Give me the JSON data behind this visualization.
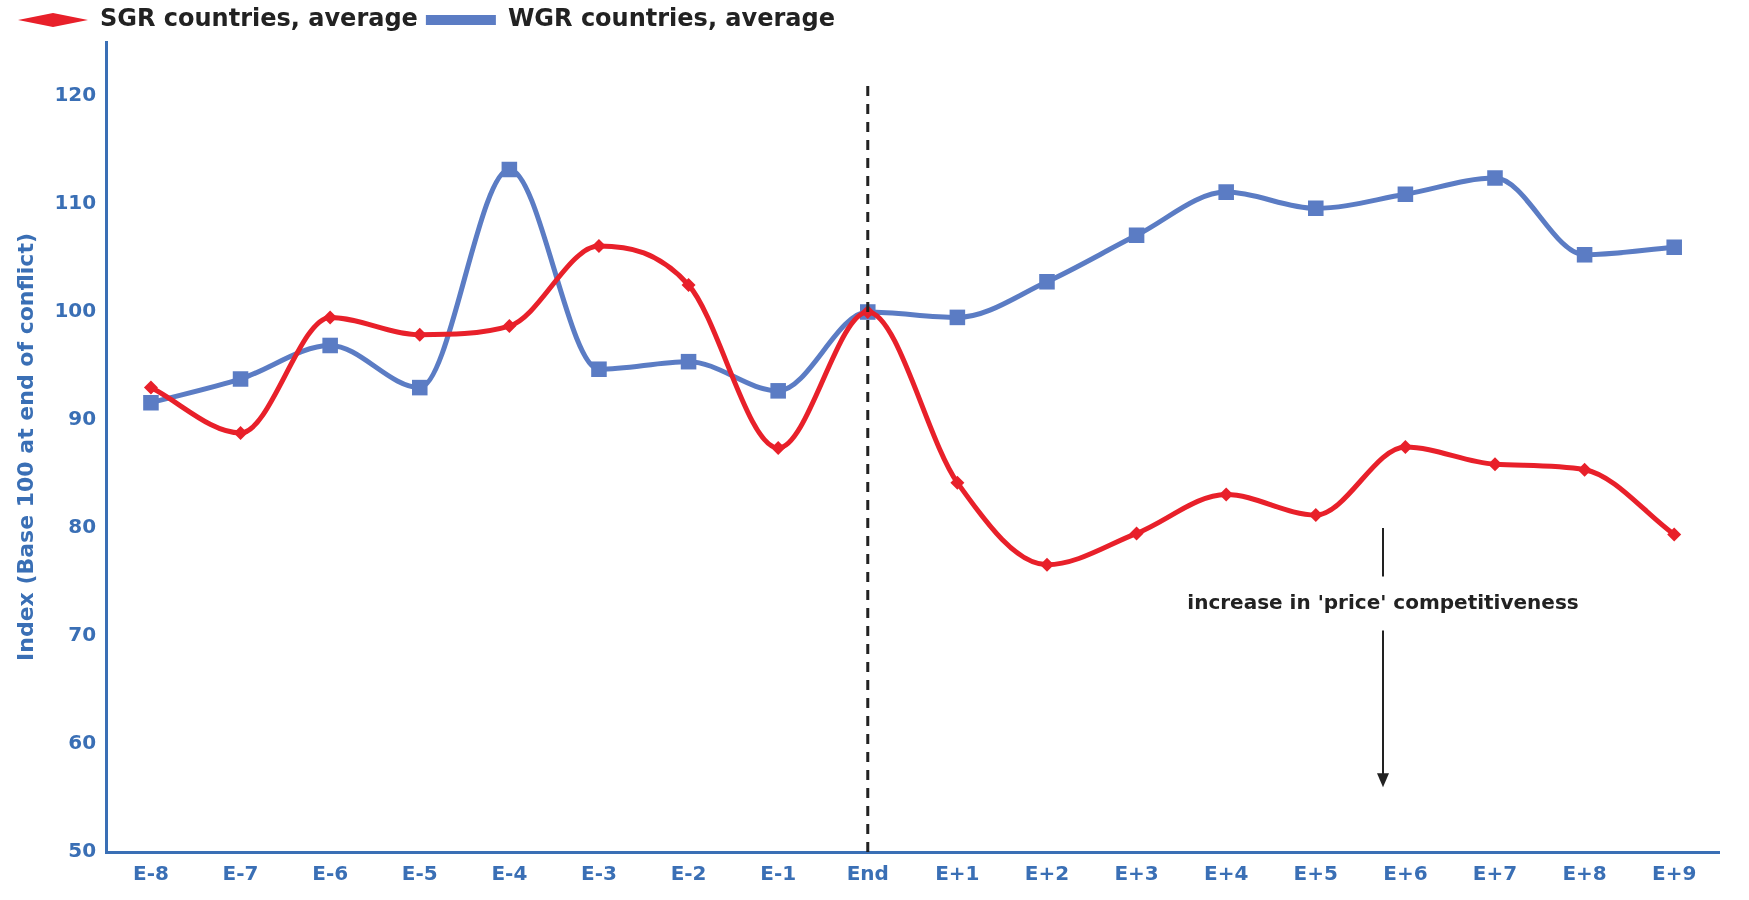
{
  "chart_data": {
    "type": "line",
    "ylabel": "Index (Base 100 at end of conflict)",
    "categories": [
      "E-8",
      "E-7",
      "E-6",
      "E-5",
      "E-4",
      "E-3",
      "E-2",
      "E-1",
      "End",
      "E+1",
      "E+2",
      "E+3",
      "E+4",
      "E+5",
      "E+6",
      "E+7",
      "E+8",
      "E+9"
    ],
    "series": [
      {
        "name": "SGR countries, average",
        "color": "#e8202a",
        "marker": "diamond",
        "values": [
          93.0,
          88.8,
          99.5,
          97.9,
          98.7,
          106.1,
          102.5,
          87.4,
          100,
          84.2,
          76.6,
          79.5,
          83.1,
          81.2,
          87.5,
          85.9,
          85.4,
          79.4
        ]
      },
      {
        "name": "WGR countries, average",
        "color": "#5b7cc4",
        "marker": "square",
        "values": [
          91.6,
          93.8,
          96.9,
          93.0,
          113.2,
          94.7,
          95.4,
          92.7,
          100,
          99.5,
          102.8,
          107.1,
          111.1,
          109.6,
          110.9,
          112.4,
          105.3,
          106.0
        ]
      }
    ],
    "ylim": [
      50,
      125
    ],
    "yticks": [
      50,
      60,
      70,
      80,
      90,
      100,
      110,
      120
    ],
    "grid": false,
    "legend": "top left",
    "ref_lines": [
      {
        "axis": "x",
        "value": "End",
        "color": "#222222",
        "line_style": "dashed"
      }
    ],
    "annotations": [
      "increase in 'price' competitiveness"
    ]
  }
}
